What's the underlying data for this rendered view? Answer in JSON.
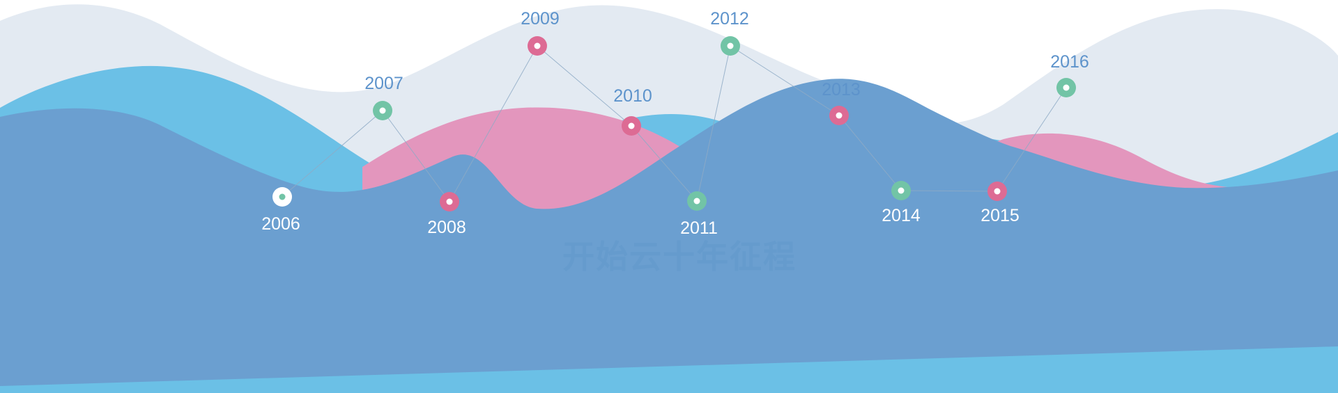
{
  "watermark": "开始云十年征程",
  "timeline": [
    {
      "year": "2006",
      "color": "white"
    },
    {
      "year": "2007",
      "color": "green"
    },
    {
      "year": "2008",
      "color": "pink"
    },
    {
      "year": "2009",
      "color": "pink"
    },
    {
      "year": "2010",
      "color": "pink"
    },
    {
      "year": "2011",
      "color": "green"
    },
    {
      "year": "2012",
      "color": "green"
    },
    {
      "year": "2013",
      "color": "pink"
    },
    {
      "year": "2014",
      "color": "green"
    },
    {
      "year": "2015",
      "color": "pink"
    },
    {
      "year": "2016",
      "color": "green"
    }
  ],
  "colors": {
    "back_wave": "#e3eaf2",
    "sky_blue": "#6bc0e6",
    "pink_wave": "#e396bd",
    "steel_blue": "#6b9fd0",
    "node_green": "#72c4a6",
    "node_pink": "#dd6b94",
    "node_white": "#ffffff",
    "label_top": "#5d93cb",
    "label_bottom": "#ffffff",
    "connector": "#8eaac6",
    "watermark": "#6097cb"
  }
}
